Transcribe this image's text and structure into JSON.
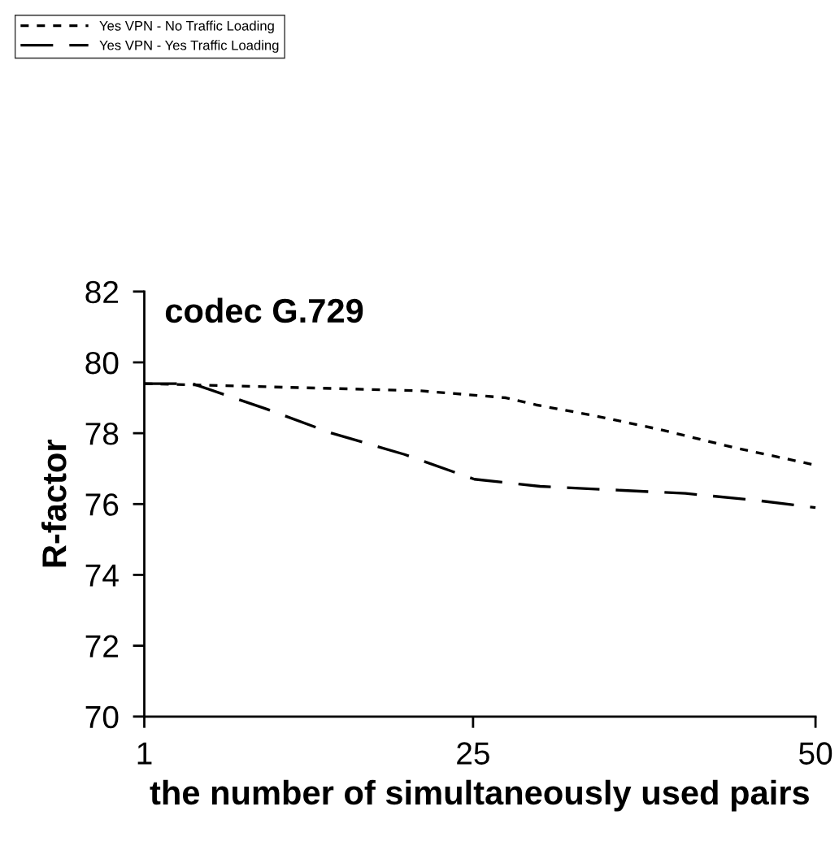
{
  "chart_data": {
    "type": "line",
    "title": "codec G.729",
    "xlabel": "the number of simultaneously used pairs",
    "ylabel": "R-factor",
    "series": [
      {
        "name": "Yes VPN - No Traffic Loading",
        "color": "#000000",
        "line_style": "dotted",
        "x": [
          1,
          21.1,
          27.4,
          29.6,
          33.8,
          38.7,
          44,
          50
        ],
        "values": [
          79.4,
          79.2,
          79.0,
          78.8,
          78.5,
          78.1,
          77.6,
          77.1
        ]
      },
      {
        "name": "Yes VPN - Yes Traffic Loading",
        "color": "#000000",
        "line_style": "dashed",
        "x": [
          1,
          4.5,
          9.8,
          14.7,
          20,
          25.1,
          29.9,
          35.2,
          40.5,
          45.8,
          50
        ],
        "values": [
          79.4,
          79.4,
          78.7,
          78.0,
          77.4,
          76.7,
          76.5,
          76.4,
          76.3,
          76.1,
          75.9
        ]
      }
    ],
    "xlim": [
      1,
      50
    ],
    "xticks": [
      1,
      25,
      50
    ],
    "ylim": [
      70,
      82
    ],
    "yticks": [
      70,
      72,
      74,
      76,
      78,
      80,
      82
    ],
    "grid": false,
    "legend": "top left",
    "marker": "none"
  }
}
